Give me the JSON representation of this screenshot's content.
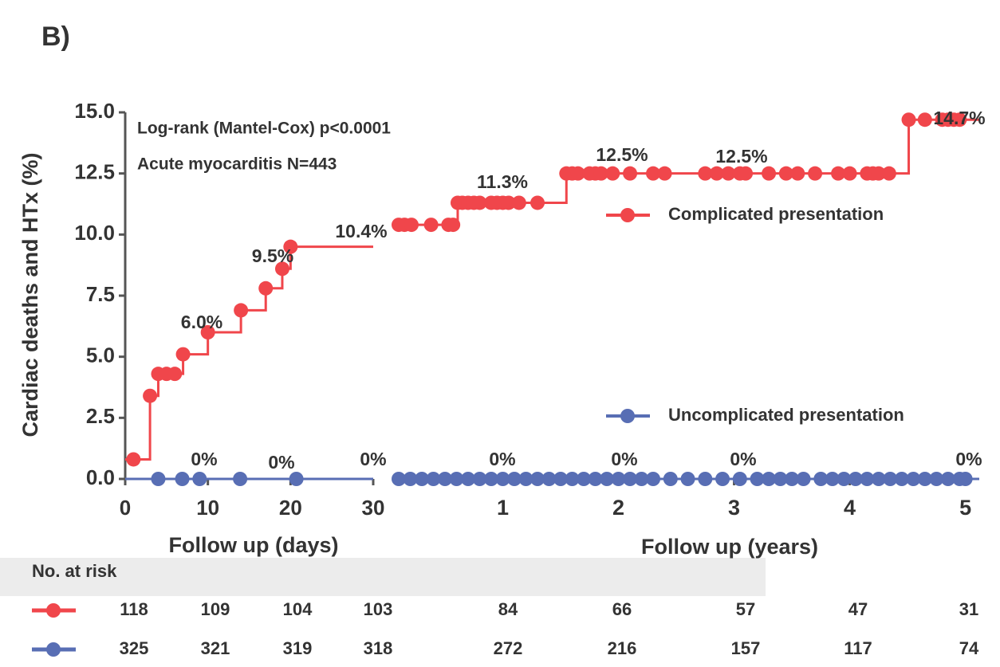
{
  "panel_label": "B)",
  "annotations_text": [
    "Log-rank (Mantel-Cox) p<0.0001",
    "Acute myocarditis N=443"
  ],
  "ylabel": "Cardiac deaths and HTx (%)",
  "ylim": [
    0,
    15
  ],
  "yticks": [
    {
      "value": 0,
      "label": "0.0"
    },
    {
      "value": 2.5,
      "label": "2.5"
    },
    {
      "value": 5,
      "label": "5.0"
    },
    {
      "value": 7.5,
      "label": "7.5"
    },
    {
      "value": 10,
      "label": "10.0"
    },
    {
      "value": 12.5,
      "label": "12.5"
    },
    {
      "value": 15,
      "label": "15.0"
    }
  ],
  "chart_data": [
    {
      "type": "step",
      "xlabel": "Follow up (days)",
      "xlim": [
        0,
        30
      ],
      "xticks": [
        0,
        10,
        20,
        30
      ],
      "series": [
        {
          "color": "#f0464b",
          "x": [
            1,
            3,
            4,
            5,
            6,
            7,
            10,
            14,
            17,
            19,
            20
          ],
          "values": [
            0.8,
            3.4,
            4.3,
            4.3,
            4.3,
            5.1,
            6.0,
            6.9,
            7.8,
            8.6,
            9.5
          ]
        },
        {
          "color": "#586eb4",
          "x": [
            4,
            6.9,
            9,
            13.9,
            20.7
          ],
          "values": [
            0,
            0,
            0,
            0,
            0
          ]
        }
      ],
      "annotations": [
        "6.0%",
        "9.5%",
        "0%",
        "0%",
        "0%"
      ]
    },
    {
      "type": "step",
      "xlabel": "Follow up (years)",
      "xlim": [
        0.1,
        5.12
      ],
      "xticks": [
        1,
        2,
        3,
        4,
        5
      ],
      "series": [
        {
          "name": "Complicated presentation",
          "color": "#f0464b",
          "x": [
            0.1,
            0.15,
            0.21,
            0.38,
            0.53,
            0.57,
            0.61,
            0.65,
            0.7,
            0.75,
            0.8,
            0.9,
            0.95,
            1.0,
            1.05,
            1.14,
            1.3,
            1.55,
            1.6,
            1.65,
            1.75,
            1.8,
            1.85,
            1.95,
            2.1,
            2.3,
            2.4,
            2.75,
            2.85,
            2.95,
            3.05,
            3.1,
            3.3,
            3.45,
            3.55,
            3.7,
            3.9,
            4.0,
            4.15,
            4.2,
            4.25,
            4.34,
            4.51,
            4.65,
            4.8,
            4.85,
            4.9,
            4.95
          ],
          "values": [
            10.4,
            10.4,
            10.4,
            10.4,
            10.4,
            10.4,
            11.3,
            11.3,
            11.3,
            11.3,
            11.3,
            11.3,
            11.3,
            11.3,
            11.3,
            11.3,
            11.3,
            12.5,
            12.5,
            12.5,
            12.5,
            12.5,
            12.5,
            12.5,
            12.5,
            12.5,
            12.5,
            12.5,
            12.5,
            12.5,
            12.5,
            12.5,
            12.5,
            12.5,
            12.5,
            12.5,
            12.5,
            12.5,
            12.5,
            12.5,
            12.5,
            12.5,
            14.7,
            14.7,
            14.7,
            14.7,
            14.7,
            14.7
          ]
        },
        {
          "name": "Uncomplicated presentation",
          "color": "#586eb4",
          "x": [
            0.1,
            0.2,
            0.3,
            0.4,
            0.5,
            0.6,
            0.7,
            0.8,
            0.9,
            1.0,
            1.1,
            1.2,
            1.3,
            1.4,
            1.5,
            1.6,
            1.7,
            1.8,
            1.9,
            2.0,
            2.1,
            2.2,
            2.3,
            2.45,
            2.6,
            2.75,
            2.9,
            3.05,
            3.2,
            3.3,
            3.4,
            3.5,
            3.6,
            3.75,
            3.85,
            3.95,
            4.05,
            4.15,
            4.25,
            4.35,
            4.45,
            4.55,
            4.65,
            4.75,
            4.85,
            4.95,
            5.0
          ],
          "values": [
            0,
            0,
            0,
            0,
            0,
            0,
            0,
            0,
            0,
            0,
            0,
            0,
            0,
            0,
            0,
            0,
            0,
            0,
            0,
            0,
            0,
            0,
            0,
            0,
            0,
            0,
            0,
            0,
            0,
            0,
            0,
            0,
            0,
            0,
            0,
            0,
            0,
            0,
            0,
            0,
            0,
            0,
            0,
            0,
            0,
            0,
            0
          ]
        }
      ],
      "annotations": [
        "10.4%",
        "11.3%",
        "12.5%",
        "12.5%",
        "14.7%",
        "0%",
        "0%",
        "0%",
        "0%"
      ]
    }
  ],
  "risk_table": {
    "title": "No. at risk",
    "rows": [
      [
        118,
        109,
        104,
        103,
        84,
        66,
        57,
        47,
        31
      ],
      [
        325,
        321,
        319,
        318,
        272,
        216,
        157,
        117,
        74
      ]
    ]
  }
}
